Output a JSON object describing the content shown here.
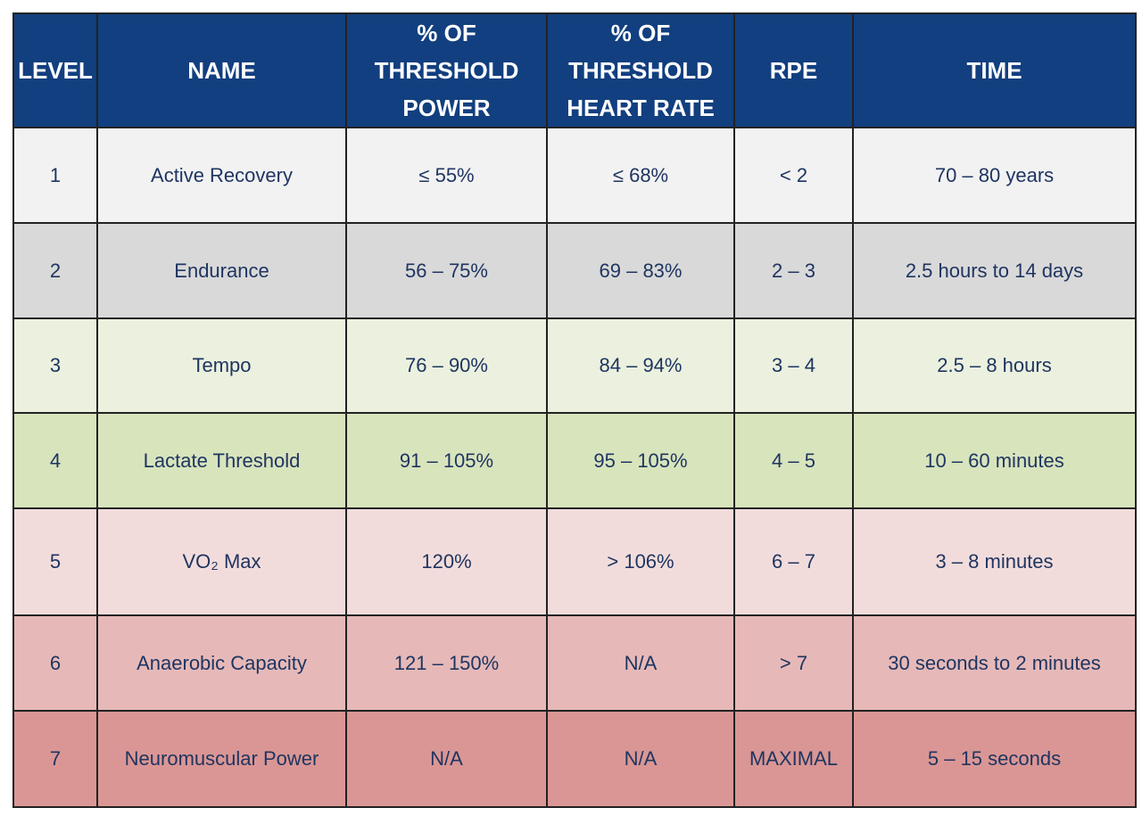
{
  "table": {
    "headers": [
      "LEVEL",
      "NAME",
      "% OF THRESHOLD POWER",
      "% OF THRESHOLD HEART RATE",
      "RPE",
      "TIME"
    ],
    "rows": [
      [
        "1",
        "Active Recovery",
        "≤ 55%",
        "≤ 68%",
        "< 2",
        "70 – 80 years"
      ],
      [
        "2",
        "Endurance",
        "56 – 75%",
        "69 – 83%",
        "2 – 3",
        "2.5 hours to 14 days"
      ],
      [
        "3",
        "Tempo",
        "76 – 90%",
        "84 – 94%",
        "3 – 4",
        "2.5 – 8 hours"
      ],
      [
        "4",
        "Lactate Threshold",
        "91 – 105%",
        "95 – 105%",
        "4 – 5",
        "10 – 60 minutes"
      ],
      [
        "5",
        "VO₂ Max",
        "120%",
        "> 106%",
        "6 – 7",
        "3 – 8 minutes"
      ],
      [
        "6",
        "Anaerobic Capacity",
        "121 – 150%",
        "N/A",
        "> 7",
        "30 seconds to 2 minutes"
      ],
      [
        "7",
        "Neuromuscular Power",
        "N/A",
        "N/A",
        "MAXIMAL",
        "5 – 15 seconds"
      ]
    ]
  }
}
